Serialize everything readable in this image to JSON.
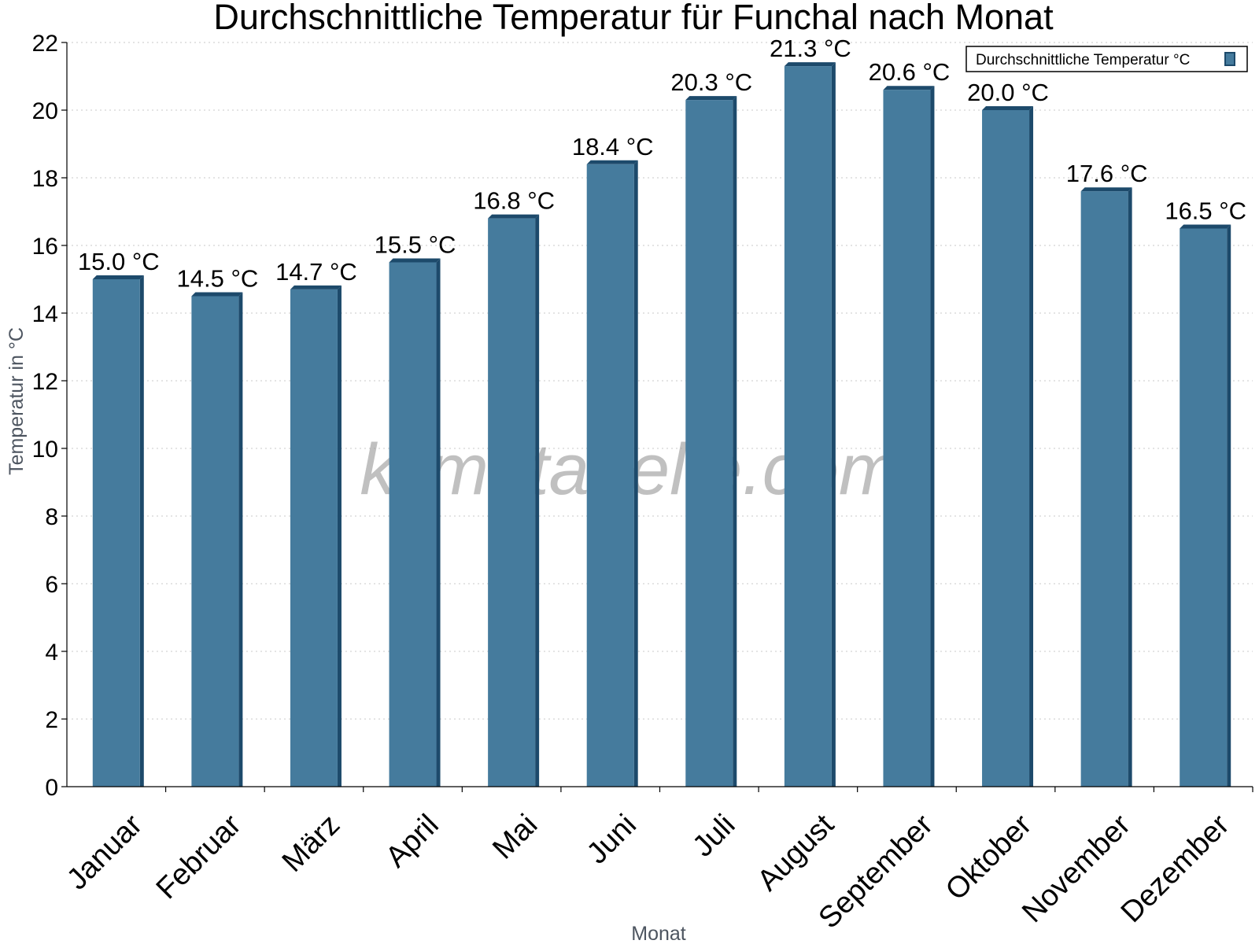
{
  "chart_data": {
    "type": "bar",
    "title": "Durchschnittliche Temperatur für Funchal nach Monat",
    "xlabel": "Monat",
    "ylabel": "Temperatur in °C",
    "ylim": [
      0,
      22
    ],
    "yticks": [
      0,
      2,
      4,
      6,
      8,
      10,
      12,
      14,
      16,
      18,
      20,
      22
    ],
    "grid": true,
    "legend_position": "top-right",
    "categories": [
      "Januar",
      "Februar",
      "März",
      "April",
      "Mai",
      "Juni",
      "Juli",
      "August",
      "September",
      "Oktober",
      "November",
      "Dezember"
    ],
    "series": [
      {
        "name": "Durchschnittliche Temperatur °C",
        "values": [
          15.0,
          14.5,
          14.7,
          15.5,
          16.8,
          18.4,
          20.3,
          21.3,
          20.6,
          20.0,
          17.6,
          16.5
        ],
        "data_labels": [
          "15.0 °C",
          "14.5 °C",
          "14.7 °C",
          "15.5 °C",
          "16.8 °C",
          "18.4 °C",
          "20.3 °C",
          "21.3 °C",
          "20.6 °C",
          "20.0 °C",
          "17.6 °C",
          "16.5 °C"
        ],
        "color": "#457b9d",
        "edge_color": "#1d4a6b"
      }
    ]
  },
  "watermark": "klimatabelle.com"
}
